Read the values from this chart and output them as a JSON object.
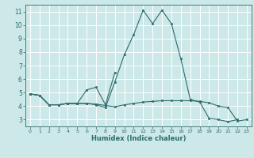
{
  "xlabel": "Humidex (Indice chaleur)",
  "x": [
    0,
    1,
    2,
    3,
    4,
    5,
    6,
    7,
    8,
    9,
    10,
    11,
    12,
    13,
    14,
    15,
    16,
    17,
    18,
    19,
    20,
    21,
    22,
    23
  ],
  "line1": [
    4.9,
    4.8,
    4.1,
    4.1,
    4.2,
    4.2,
    4.2,
    4.15,
    4.05,
    3.95,
    4.1,
    4.2,
    4.3,
    4.35,
    4.4,
    4.4,
    4.4,
    4.4,
    4.35,
    4.25,
    4.0,
    3.9,
    2.9,
    3.0
  ],
  "line2": [
    4.9,
    4.8,
    4.1,
    4.1,
    4.2,
    4.2,
    4.2,
    4.1,
    3.9,
    5.8,
    7.8,
    9.3,
    11.1,
    10.1,
    11.1,
    10.1,
    7.5,
    4.5,
    4.3,
    3.1,
    3.0,
    2.85,
    3.0,
    null
  ],
  "line3": [
    4.9,
    4.8,
    4.1,
    4.1,
    4.2,
    4.2,
    5.2,
    5.4,
    4.1,
    6.5,
    null,
    null,
    null,
    null,
    null,
    null,
    null,
    null,
    null,
    null,
    null,
    null,
    null,
    null
  ],
  "bg_color": "#cce8e8",
  "grid_color": "#ffffff",
  "line_color": "#2e6b6b",
  "ylim": [
    2.5,
    11.5
  ],
  "xlim": [
    -0.5,
    23.5
  ],
  "yticks": [
    3,
    4,
    5,
    6,
    7,
    8,
    9,
    10,
    11
  ],
  "xticks": [
    0,
    1,
    2,
    3,
    4,
    5,
    6,
    7,
    8,
    9,
    10,
    11,
    12,
    13,
    14,
    15,
    16,
    17,
    18,
    19,
    20,
    21,
    22,
    23
  ]
}
